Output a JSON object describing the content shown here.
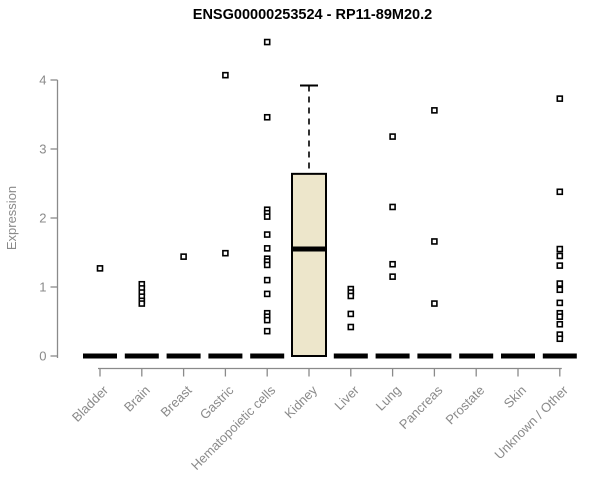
{
  "title": "ENSG00000253524 - RP11-89M20.2",
  "colors": {
    "background": "#ffffff",
    "title": "#000000",
    "axis": "#8a8a8a",
    "tick_label": "#8a8a8a",
    "box_fill": "#ede6cb",
    "box_stroke": "#000000",
    "median": "#000000",
    "outlier_stroke": "#000000",
    "outlier_fill": "#ffffff",
    "collapsed_bar": "#000000"
  },
  "chart_data": {
    "type": "boxplot",
    "title": "ENSG00000253524 - RP11-89M20.2",
    "xlabel": "",
    "ylabel": "Expression",
    "ylim": [
      0,
      4
    ],
    "yticks": [
      0,
      1,
      2,
      3,
      4
    ],
    "grid": false,
    "legend": "none",
    "x_label_rotation_deg": 45,
    "categories": [
      "Bladder",
      "Brain",
      "Breast",
      "Gastric",
      "Hematopoietic cells",
      "Kidney",
      "Liver",
      "Lung",
      "Pancreas",
      "Prostate",
      "Skin",
      "Unknown / Other"
    ],
    "boxes": [
      {
        "category": "Bladder",
        "whisker_low": 0,
        "q1": 0,
        "median": 0,
        "q3": 0,
        "whisker_high": 0,
        "outliers": [
          1.27
        ]
      },
      {
        "category": "Brain",
        "whisker_low": 0,
        "q1": 0,
        "median": 0,
        "q3": 0,
        "whisker_high": 0,
        "outliers": [
          1.04,
          0.98,
          0.92,
          0.86,
          0.8,
          0.76
        ]
      },
      {
        "category": "Breast",
        "whisker_low": 0,
        "q1": 0,
        "median": 0,
        "q3": 0,
        "whisker_high": 0,
        "outliers": [
          1.44
        ]
      },
      {
        "category": "Gastric",
        "whisker_low": 0,
        "q1": 0,
        "median": 0,
        "q3": 0,
        "whisker_high": 0,
        "outliers": [
          4.07,
          1.49
        ]
      },
      {
        "category": "Hematopoietic cells",
        "whisker_low": 0,
        "q1": 0,
        "median": 0,
        "q3": 0,
        "whisker_high": 0,
        "outliers": [
          4.55,
          3.46,
          2.12,
          2.07,
          2.02,
          1.76,
          1.56,
          1.41,
          1.37,
          1.32,
          1.1,
          0.9,
          0.62,
          0.57,
          0.52,
          0.36
        ]
      },
      {
        "category": "Kidney",
        "whisker_low": 0,
        "q1": 0,
        "median": 1.55,
        "q3": 2.64,
        "whisker_high": 3.92,
        "outliers": []
      },
      {
        "category": "Liver",
        "whisker_low": 0,
        "q1": 0,
        "median": 0,
        "q3": 0,
        "whisker_high": 0,
        "outliers": [
          0.97,
          0.92,
          0.87,
          0.61,
          0.42
        ]
      },
      {
        "category": "Lung",
        "whisker_low": 0,
        "q1": 0,
        "median": 0,
        "q3": 0,
        "whisker_high": 0,
        "outliers": [
          3.18,
          2.16,
          1.33,
          1.15
        ]
      },
      {
        "category": "Pancreas",
        "whisker_low": 0,
        "q1": 0,
        "median": 0,
        "q3": 0,
        "whisker_high": 0,
        "outliers": [
          3.56,
          1.66,
          0.76
        ]
      },
      {
        "category": "Prostate",
        "whisker_low": 0,
        "q1": 0,
        "median": 0,
        "q3": 0,
        "whisker_high": 0,
        "outliers": []
      },
      {
        "category": "Skin",
        "whisker_low": 0,
        "q1": 0,
        "median": 0,
        "q3": 0,
        "whisker_high": 0,
        "outliers": []
      },
      {
        "category": "Unknown / Other",
        "whisker_low": 0,
        "q1": 0,
        "median": 0,
        "q3": 0,
        "whisker_high": 0,
        "outliers": [
          3.73,
          2.38,
          1.55,
          1.45,
          1.31,
          1.05,
          0.96,
          0.77,
          0.62,
          0.57,
          0.46,
          0.31,
          0.25
        ]
      }
    ]
  }
}
